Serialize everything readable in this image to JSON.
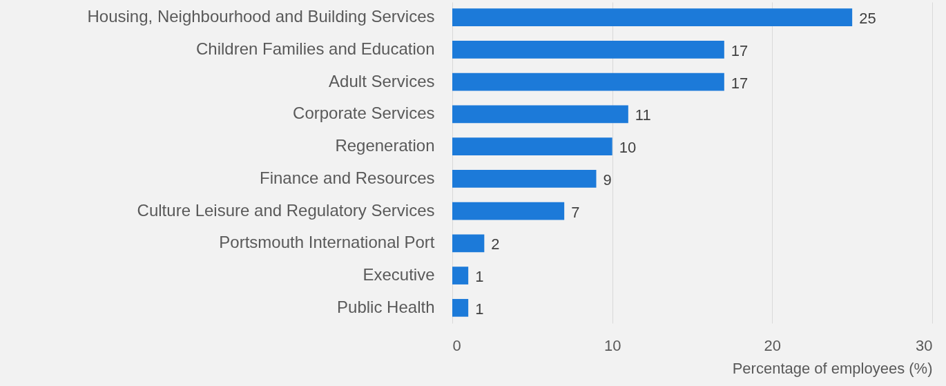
{
  "chart_data": {
    "type": "bar",
    "orientation": "horizontal",
    "xlabel": "Percentage of employees (%)",
    "categories": [
      "Housing, Neighbourhood and Building Services",
      "Children Families and Education",
      "Adult Services",
      "Corporate Services",
      "Regeneration",
      "Finance and Resources",
      "Culture Leisure and Regulatory Services",
      "Portsmouth International Port",
      "Executive",
      "Public Health"
    ],
    "values": [
      25,
      17,
      17,
      11,
      10,
      9,
      7,
      2,
      1,
      1
    ],
    "color": "#1c7ad9",
    "xlim": [
      0,
      30
    ],
    "xticks": [
      0,
      10,
      20,
      30
    ],
    "grid": "x",
    "data_labels": true
  }
}
